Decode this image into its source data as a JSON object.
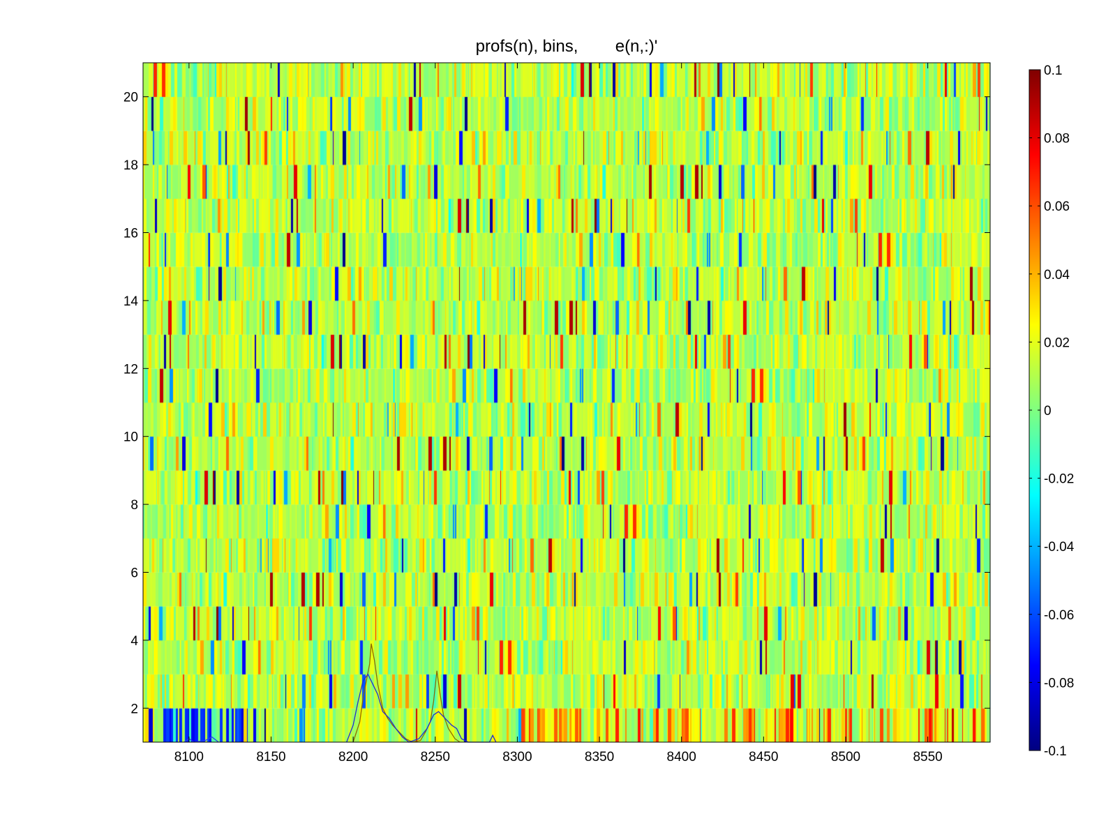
{
  "chart_data": {
    "type": "heatmap",
    "title": "profs(n), bins,        e(n,:)'",
    "xlabel": "",
    "ylabel": "",
    "xlim": [
      8072,
      8588
    ],
    "ylim": [
      1,
      21
    ],
    "x_ticks": [
      8100,
      8150,
      8200,
      8250,
      8300,
      8350,
      8400,
      8450,
      8500,
      8550
    ],
    "y_ticks": [
      2,
      4,
      6,
      8,
      10,
      12,
      14,
      16,
      18,
      20
    ],
    "rows": 20,
    "colormap": "jet",
    "grid": false,
    "colorbar": {
      "placement": "right",
      "clim": [
        -0.1,
        0.1
      ],
      "ticks": [
        -0.1,
        -0.08,
        -0.06,
        -0.04,
        -0.02,
        0,
        0.02,
        0.04,
        0.06,
        0.08,
        0.1
      ],
      "tick_labels": [
        "-0.1",
        "-0.08",
        "-0.06",
        "-0.04",
        "-0.02",
        "0",
        "0.02",
        "0.04",
        "0.06",
        "0.08",
        "0.1"
      ]
    },
    "overlay_series": [
      {
        "color": "#8b6b00",
        "points": [
          [
            8200,
            1
          ],
          [
            8204,
            1.6
          ],
          [
            8206,
            2.3
          ],
          [
            8208,
            2.8
          ],
          [
            8210,
            3.3
          ],
          [
            8211,
            3.9
          ],
          [
            8213,
            3.4
          ],
          [
            8215,
            2.7
          ],
          [
            8218,
            2.0
          ],
          [
            8221,
            1.7
          ],
          [
            8224,
            1.5
          ],
          [
            8228,
            1.3
          ],
          [
            8232,
            1.1
          ],
          [
            8236,
            1.0
          ],
          [
            8241,
            1.05
          ],
          [
            8244,
            1.3
          ],
          [
            8247,
            1.6
          ],
          [
            8249,
            2.2
          ],
          [
            8251,
            3.1
          ],
          [
            8253,
            2.4
          ],
          [
            8255,
            1.8
          ],
          [
            8258,
            1.4
          ],
          [
            8262,
            1.1
          ],
          [
            8265,
            1.0
          ]
        ]
      },
      {
        "color": "#1f2bd6",
        "points": [
          [
            8196,
            1
          ],
          [
            8200,
            1.5
          ],
          [
            8203,
            2.2
          ],
          [
            8206,
            2.8
          ],
          [
            8209,
            3.0
          ],
          [
            8212,
            2.7
          ],
          [
            8215,
            2.4
          ],
          [
            8218,
            1.9
          ],
          [
            8222,
            1.7
          ],
          [
            8226,
            1.4
          ],
          [
            8230,
            1.15
          ],
          [
            8234,
            1.0
          ],
          [
            8240,
            1.1
          ],
          [
            8245,
            1.4
          ],
          [
            8249,
            1.8
          ],
          [
            8252,
            1.9
          ],
          [
            8256,
            1.7
          ],
          [
            8260,
            1.5
          ],
          [
            8263,
            1.4
          ],
          [
            8266,
            1.1
          ],
          [
            8270,
            1.0
          ],
          [
            8283,
            1.0
          ],
          [
            8285,
            1.2
          ],
          [
            8287,
            1.0
          ]
        ]
      },
      {
        "color": "#2a3cf0",
        "points": [
          [
            8097,
            1
          ],
          [
            8100,
            1.1
          ],
          [
            8103,
            1.0
          ],
          [
            8110,
            1.05
          ],
          [
            8114,
            1.15
          ],
          [
            8118,
            1.0
          ]
        ]
      }
    ]
  }
}
